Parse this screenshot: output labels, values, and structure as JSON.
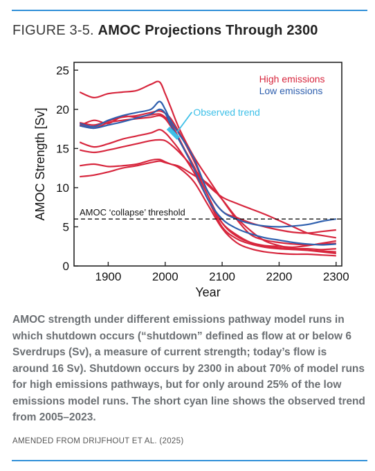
{
  "figure": {
    "label": "FIGURE 3-5.",
    "title": "AMOC Projections Through 2300",
    "caption": "AMOC strength under different emissions pathway model runs in which shutdown occurs (“shutdown” defined as flow at or below 6 Sverdrups (Sv), a measure of current strength; today’s flow is around 16 Sv). Shutdown occurs by 2300 in about 70% of model runs for high emissions pathways, but for only around 25% of the low emissions model runs. The short cyan line shows the observed trend from 2005–2023.",
    "source": "AMENDED FROM DRIJFHOUT ET AL. (2025)"
  },
  "colors": {
    "rule": "#2f8fd8",
    "high": "#d7263d",
    "low": "#2e5fae",
    "observed": "#3ec0e8"
  },
  "chart_data": {
    "type": "line",
    "xlabel": "Year",
    "ylabel": "AMOC Strength [Sv]",
    "xlim": [
      1840,
      2310
    ],
    "ylim": [
      0,
      26
    ],
    "xticks": [
      1900,
      2000,
      2100,
      2200,
      2300
    ],
    "yticks": [
      0,
      5,
      10,
      15,
      20,
      25
    ],
    "grid": false,
    "legend": [
      "High emissions",
      "Low emissions"
    ],
    "threshold": {
      "value": 6,
      "label": "AMOC ‘collapse’ threshold"
    },
    "annotation": "Observed trend",
    "observed_trend": {
      "x": [
        2005,
        2023
      ],
      "y": [
        17.6,
        16.3
      ]
    },
    "x": [
      1850,
      1875,
      1900,
      1925,
      1950,
      1975,
      1990,
      2000,
      2010,
      2025,
      2050,
      2075,
      2100,
      2125,
      2150,
      2175,
      2200,
      2225,
      2250,
      2275,
      2300
    ],
    "series": [
      {
        "name": "High emissions",
        "group": "high",
        "values": [
          22.2,
          21.5,
          22.0,
          22.2,
          22.4,
          23.2,
          23.5,
          22.0,
          20.2,
          17.5,
          14.0,
          11.2,
          8.5,
          6.0,
          4.0,
          3.3,
          3.0,
          2.8,
          2.7,
          2.8,
          2.9
        ]
      },
      {
        "name": "High emissions",
        "group": "high",
        "values": [
          18.3,
          18.0,
          18.5,
          19.0,
          19.2,
          19.6,
          19.8,
          19.5,
          18.8,
          17.0,
          13.5,
          9.5,
          7.0,
          6.2,
          5.5,
          5.0,
          4.6,
          4.3,
          4.2,
          4.4,
          4.6
        ]
      },
      {
        "name": "High emissions",
        "group": "high",
        "values": [
          17.9,
          18.6,
          18.2,
          19.1,
          19.0,
          19.3,
          19.4,
          19.0,
          18.2,
          16.2,
          12.5,
          8.5,
          5.5,
          4.0,
          3.0,
          2.5,
          2.3,
          2.2,
          2.2,
          2.1,
          2.2
        ]
      },
      {
        "name": "High emissions",
        "group": "high",
        "values": [
          18.0,
          17.6,
          18.3,
          18.6,
          18.8,
          19.0,
          19.2,
          18.8,
          17.8,
          16.0,
          12.8,
          9.0,
          5.5,
          3.8,
          3.0,
          2.6,
          2.5,
          2.4,
          2.6,
          2.9,
          3.2
        ]
      },
      {
        "name": "High emissions",
        "group": "high",
        "values": [
          15.8,
          15.2,
          15.6,
          16.2,
          16.6,
          17.0,
          17.4,
          17.0,
          16.2,
          14.8,
          12.0,
          8.5,
          5.0,
          3.5,
          2.8,
          2.4,
          2.2,
          2.1,
          2.0,
          1.9,
          1.8
        ]
      },
      {
        "name": "High emissions",
        "group": "high",
        "values": [
          14.8,
          14.5,
          14.8,
          15.2,
          15.6,
          16.0,
          16.1,
          16.0,
          15.5,
          14.5,
          12.5,
          10.3,
          8.8,
          8.0,
          7.3,
          6.6,
          5.8,
          5.0,
          4.2,
          3.9,
          3.6
        ]
      },
      {
        "name": "High emissions",
        "group": "high",
        "values": [
          12.8,
          13.0,
          12.7,
          12.8,
          13.0,
          13.5,
          13.6,
          13.3,
          13.0,
          12.7,
          11.6,
          10.5,
          8.5,
          6.2,
          4.5,
          3.2,
          2.6,
          2.2,
          2.0,
          1.8,
          1.6
        ]
      },
      {
        "name": "High emissions",
        "group": "high",
        "values": [
          11.4,
          11.6,
          12.0,
          12.5,
          12.8,
          13.2,
          13.4,
          13.2,
          13.0,
          12.5,
          10.8,
          7.8,
          4.8,
          3.0,
          2.2,
          1.8,
          1.6,
          1.5,
          1.5,
          1.4,
          1.3
        ]
      },
      {
        "name": "Low emissions",
        "group": "low",
        "values": [
          18.2,
          17.8,
          18.6,
          19.2,
          19.6,
          20.0,
          21.0,
          20.0,
          18.5,
          16.8,
          13.8,
          9.5,
          7.0,
          6.0,
          5.4,
          5.1,
          5.0,
          5.1,
          5.3,
          5.7,
          6.0
        ]
      },
      {
        "name": "Low emissions",
        "group": "low",
        "values": [
          17.9,
          17.6,
          18.0,
          18.4,
          18.9,
          19.4,
          20.0,
          19.5,
          18.0,
          16.0,
          12.5,
          8.5,
          6.0,
          4.8,
          4.1,
          3.6,
          3.3,
          3.0,
          2.8,
          2.7,
          2.8
        ]
      }
    ]
  }
}
